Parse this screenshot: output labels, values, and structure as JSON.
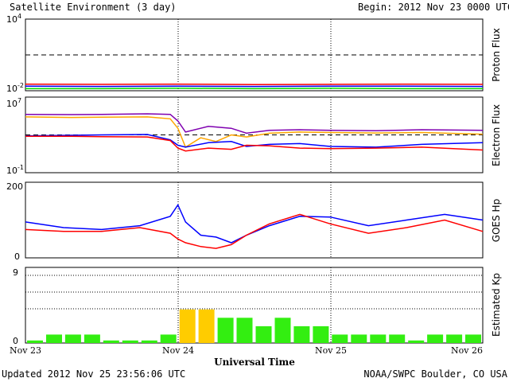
{
  "header": {
    "title": "Satellite Environment (3 day)",
    "begin": "Begin:  2012 Nov 23 0000 UTC"
  },
  "footer": {
    "updated": "Updated 2012 Nov 25 23:56:06 UTC",
    "credit": "NOAA/SWPC Boulder, CO USA"
  },
  "x_axis": {
    "label": "Universal Time",
    "ticks": [
      "Nov 23",
      "Nov 24",
      "Nov 25",
      "Nov 26"
    ]
  },
  "colors": {
    "red": "#ff0000",
    "blue": "#0000ff",
    "green": "#00dd00",
    "orange": "#ffa500",
    "purple": "#7f00b0",
    "kp_green": "#33ee11",
    "kp_yellow": "#ffcc00"
  },
  "chart_data": [
    {
      "type": "line",
      "panel": "proton",
      "ylabel": "Proton Flux",
      "yscale": "log",
      "ylim": [
        0.01,
        10000
      ],
      "ytick_labels": [
        {
          "base": "10",
          "exp": "4"
        },
        {
          "base": "10",
          "exp": "-2"
        }
      ],
      "threshold": 10,
      "x_unit": "days since 2012 Nov 23 0000 UTC",
      "series": [
        {
          "color": "red",
          "x": [
            0,
            0.5,
            1,
            1.5,
            2,
            2.5,
            3
          ],
          "y": [
            0.035,
            0.034,
            0.035,
            0.033,
            0.034,
            0.035,
            0.034
          ]
        },
        {
          "color": "blue",
          "x": [
            0,
            0.5,
            1,
            1.5,
            2,
            2.5,
            3
          ],
          "y": [
            0.024,
            0.023,
            0.024,
            0.023,
            0.024,
            0.024,
            0.023
          ]
        },
        {
          "color": "green",
          "x": [
            0,
            0.5,
            1,
            1.5,
            2,
            2.5,
            3
          ],
          "y": [
            0.015,
            0.015,
            0.016,
            0.015,
            0.016,
            0.015,
            0.015
          ]
        }
      ]
    },
    {
      "type": "line",
      "panel": "electron",
      "ylabel": "Electron Flux",
      "yscale": "log",
      "ylim": [
        0.1,
        10000000
      ],
      "ytick_labels": [
        {
          "base": "10",
          "exp": "7"
        },
        {
          "base": "10",
          "exp": "-1"
        }
      ],
      "threshold": 1000,
      "x_unit": "days since 2012 Nov 23 0000 UTC",
      "series": [
        {
          "color": "purple",
          "x": [
            0,
            0.3,
            0.5,
            0.8,
            0.95,
            1.0,
            1.05,
            1.2,
            1.35,
            1.45,
            1.6,
            1.8,
            2.0,
            2.3,
            2.6,
            3.0
          ],
          "y": [
            150000,
            140000,
            150000,
            170000,
            150000,
            30000,
            2000,
            8000,
            5000,
            1500,
            3000,
            3500,
            3000,
            2800,
            3500,
            3000
          ]
        },
        {
          "color": "orange",
          "x": [
            0,
            0.3,
            0.5,
            0.8,
            0.95,
            1.0,
            1.05,
            1.15,
            1.25,
            1.35,
            1.45,
            1.6,
            1.8,
            2.0,
            2.3,
            2.6,
            3.0
          ],
          "y": [
            80000,
            70000,
            75000,
            80000,
            50000,
            5000,
            50,
            500,
            200,
            1000,
            600,
            1500,
            2000,
            1800,
            1600,
            1800,
            1200
          ]
        },
        {
          "color": "blue",
          "x": [
            0,
            0.3,
            0.5,
            0.8,
            0.95,
            1.0,
            1.05,
            1.2,
            1.35,
            1.45,
            1.6,
            1.8,
            2.0,
            2.3,
            2.6,
            3.0
          ],
          "y": [
            800,
            900,
            1000,
            1100,
            300,
            80,
            50,
            150,
            200,
            60,
            100,
            120,
            60,
            50,
            100,
            150
          ]
        },
        {
          "color": "red",
          "x": [
            0,
            0.3,
            0.5,
            0.8,
            0.95,
            1.0,
            1.05,
            1.2,
            1.35,
            1.45,
            1.6,
            1.8,
            2.0,
            2.3,
            2.6,
            3.0
          ],
          "y": [
            700,
            700,
            650,
            600,
            250,
            40,
            20,
            40,
            30,
            80,
            70,
            40,
            35,
            40,
            50,
            25
          ]
        }
      ]
    },
    {
      "type": "line",
      "panel": "goes_hp",
      "ylabel": "GOES Hp",
      "ylim": [
        0,
        200
      ],
      "yticks": [
        0,
        200
      ],
      "x_unit": "days since 2012 Nov 23 0000 UTC",
      "series": [
        {
          "color": "blue",
          "x": [
            0,
            0.25,
            0.5,
            0.75,
            0.95,
            1.0,
            1.05,
            1.15,
            1.25,
            1.35,
            1.45,
            1.6,
            1.8,
            2.0,
            2.25,
            2.5,
            2.75,
            3.0
          ],
          "y": [
            95,
            80,
            75,
            85,
            110,
            140,
            95,
            60,
            55,
            40,
            60,
            85,
            110,
            108,
            85,
            100,
            115,
            100
          ]
        },
        {
          "color": "red",
          "x": [
            0,
            0.25,
            0.5,
            0.75,
            0.95,
            1.0,
            1.05,
            1.15,
            1.25,
            1.35,
            1.45,
            1.6,
            1.8,
            2.0,
            2.25,
            2.5,
            2.75,
            3.0
          ],
          "y": [
            75,
            70,
            70,
            80,
            65,
            50,
            40,
            30,
            25,
            35,
            60,
            90,
            115,
            90,
            65,
            80,
            100,
            70
          ]
        }
      ]
    },
    {
      "type": "bar",
      "panel": "kp",
      "ylabel": "Estimated Kp",
      "ylim": [
        0,
        9
      ],
      "yticks": [
        0,
        9
      ],
      "x_unit": "days since 2012 Nov 23 0000 UTC",
      "interval_hours": 3,
      "values": [
        0.3,
        1,
        1,
        1,
        0.3,
        0.3,
        0.3,
        1,
        4,
        4,
        3,
        3,
        2,
        3,
        2,
        2,
        1,
        1,
        1,
        1,
        0.3,
        1,
        1,
        1
      ]
    }
  ]
}
